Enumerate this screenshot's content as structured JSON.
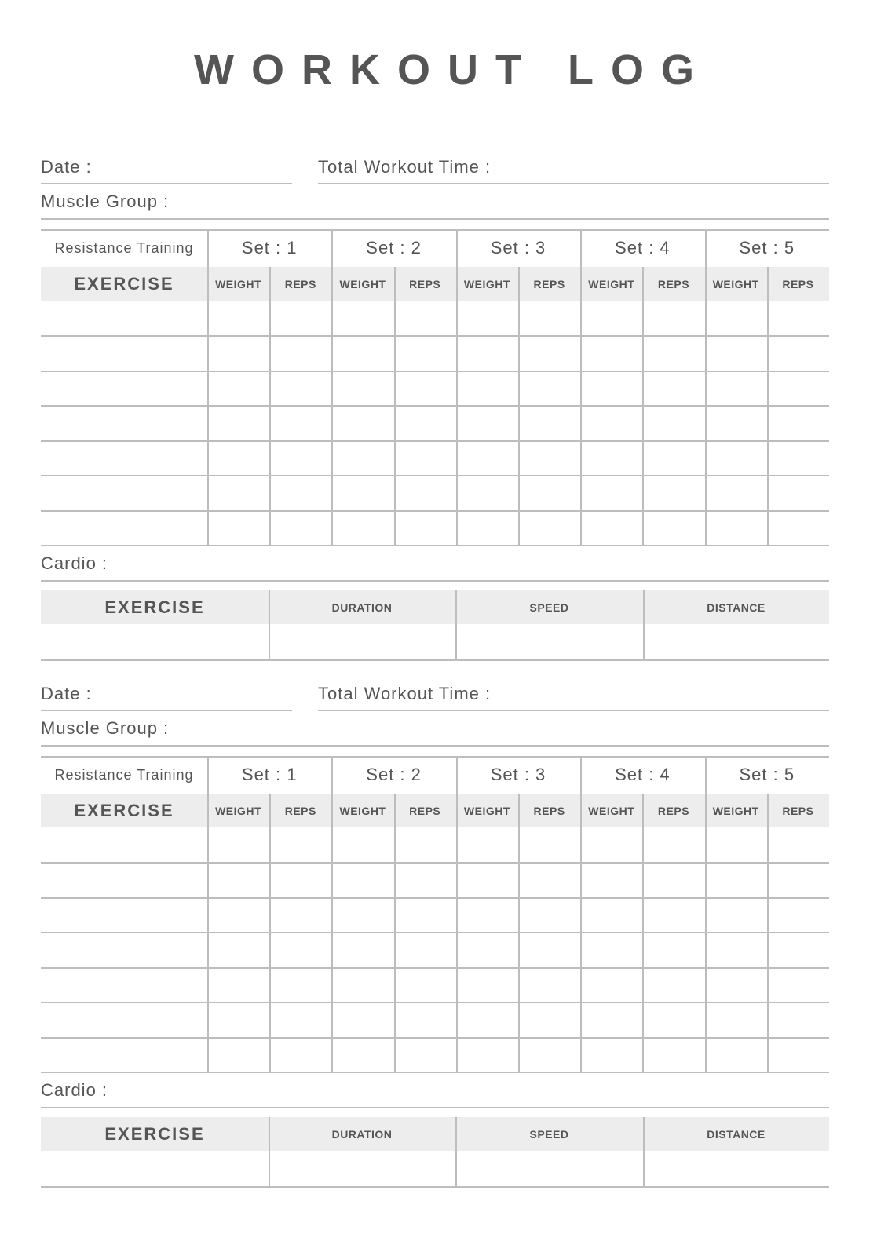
{
  "title": "WORKOUT LOG",
  "sections": [
    {
      "date_label": "Date :",
      "total_time_label": "Total Workout Time :",
      "muscle_group_label": "Muscle Group :",
      "resistance_label": "Resistance Training",
      "sets": [
        "Set : 1",
        "Set : 2",
        "Set : 3",
        "Set : 4",
        "Set : 5"
      ],
      "exercise_header": "EXERCISE",
      "weight_header": "WEIGHT",
      "reps_header": "REPS",
      "resistance_rows": 7,
      "cardio_label": "Cardio :",
      "cardio_headers": [
        "EXERCISE",
        "DURATION",
        "SPEED",
        "DISTANCE"
      ],
      "cardio_rows": 1
    },
    {
      "date_label": "Date :",
      "total_time_label": "Total Workout Time :",
      "muscle_group_label": "Muscle Group :",
      "resistance_label": "Resistance Training",
      "sets": [
        "Set : 1",
        "Set : 2",
        "Set : 3",
        "Set : 4",
        "Set : 5"
      ],
      "exercise_header": "EXERCISE",
      "weight_header": "WEIGHT",
      "reps_header": "REPS",
      "resistance_rows": 7,
      "cardio_label": "Cardio :",
      "cardio_headers": [
        "EXERCISE",
        "DURATION",
        "SPEED",
        "DISTANCE"
      ],
      "cardio_rows": 1
    }
  ],
  "colors": {
    "text": "#555555",
    "line": "#bdbdbd",
    "header_fill": "#ededed"
  }
}
